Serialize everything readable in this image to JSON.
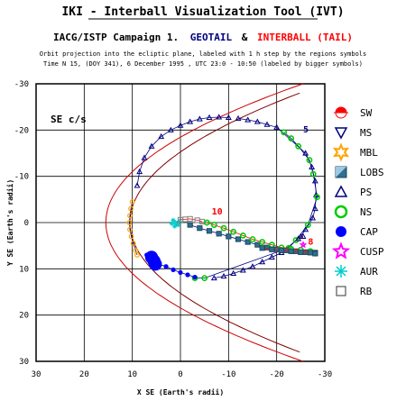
{
  "header": {
    "title": "IKI - Interball Visualization Tool (IVT)",
    "campaign": "IACG/ISTP Campaign 1.",
    "sat1": "GEOTAIL",
    "amp": "&",
    "sat2": "INTERBALL (TAIL)",
    "line1": "Orbit projection into the ecliptic plane, labeled with 1 h step by the regions symbols",
    "line2": "Time N 15, (DOY 341), 6 December 1995 , UTC 23:0 - 10:50 (labeled by bigger symbols)"
  },
  "colors": {
    "geotail": "#000080",
    "interball": "#ff0000",
    "boundary": "#800000",
    "track_ms": "#000080",
    "track_ps": "#000080",
    "mbl": "#ffa500",
    "lobs": "#2f6f8f",
    "ns": "#00cc00",
    "cap": "#0000ff",
    "cusp": "#ff00ff",
    "aur": "#00cccc",
    "rb": "#808080"
  },
  "chart_data": {
    "type": "scatter",
    "coord_label": "SE c/s",
    "xlabel": "X SE (Earth's radii)",
    "ylabel": "Y SE (Earth's radii)",
    "xlim": [
      30,
      -30
    ],
    "ylim": [
      -30,
      30
    ],
    "x_ticks": [
      "30",
      "20",
      "10",
      "0",
      "-10",
      "-20",
      "-30"
    ],
    "y_ticks": [
      "-30",
      "-20",
      "-10",
      "0",
      "10",
      "20",
      "30"
    ],
    "grid": true,
    "time_labels": [
      {
        "text": "5",
        "x": -25.5,
        "y": -19.5,
        "color": "geotail"
      },
      {
        "text": "10",
        "x": -6.5,
        "y": -1.8,
        "color": "interball"
      },
      {
        "text": "8",
        "x": -26.5,
        "y": 4.8,
        "color": "interball"
      }
    ],
    "legend": [
      {
        "label": "SW",
        "symbol": "sw"
      },
      {
        "label": "MS",
        "symbol": "ms"
      },
      {
        "label": "MBL",
        "symbol": "mbl"
      },
      {
        "label": "LOBS",
        "symbol": "lobs"
      },
      {
        "label": "PS",
        "symbol": "ps"
      },
      {
        "label": "NS",
        "symbol": "ns"
      },
      {
        "label": "CAP",
        "symbol": "cap"
      },
      {
        "label": "CUSP",
        "symbol": "cusp"
      },
      {
        "label": "AUR",
        "symbol": "aur"
      },
      {
        "label": "RB",
        "symbol": "rb"
      }
    ],
    "geotail_track": [
      {
        "region": "ms",
        "pts": [
          [
            9.0,
            -8.0
          ],
          [
            8.5,
            -11.0
          ],
          [
            7.5,
            -14.0
          ],
          [
            6.0,
            -16.5
          ],
          [
            4.0,
            -18.6
          ],
          [
            2.0,
            -20.0
          ],
          [
            0.0,
            -21.0
          ],
          [
            -2.0,
            -21.8
          ],
          [
            -4.0,
            -22.4
          ],
          [
            -6.0,
            -22.7
          ],
          [
            -8.0,
            -22.8
          ],
          [
            -10.0,
            -22.7
          ]
        ]
      },
      {
        "region": "ps",
        "pts": [
          [
            -12.0,
            -22.5
          ],
          [
            -14.0,
            -22.2
          ],
          [
            -16.0,
            -21.8
          ],
          [
            -18.0,
            -21.2
          ],
          [
            -20.0,
            -20.6
          ],
          [
            -26.0,
            -15.0
          ],
          [
            -27.3,
            -12.0
          ],
          [
            -28.0,
            -9.0
          ],
          [
            -28.2,
            -6.0
          ],
          [
            -28.0,
            -3.0
          ],
          [
            -27.5,
            -1.0
          ],
          [
            -26.0,
            1.5
          ],
          [
            -25.0,
            3.0
          ],
          [
            -21.0,
            6.5
          ],
          [
            -19.0,
            7.5
          ],
          [
            -17.0,
            8.5
          ],
          [
            -15.0,
            9.5
          ],
          [
            -13.0,
            10.3
          ],
          [
            -11.0,
            11.0
          ],
          [
            -9.0,
            11.6
          ],
          [
            -7.0,
            12.0
          ]
        ]
      },
      {
        "region": "ns",
        "pts": [
          [
            -21.5,
            -19.5
          ],
          [
            -23.0,
            -18.2
          ],
          [
            -24.5,
            -16.5
          ],
          [
            -26.8,
            -13.5
          ],
          [
            -27.6,
            -10.5
          ],
          [
            -28.4,
            -5.5
          ],
          [
            -26.5,
            0.5
          ],
          [
            -24.0,
            3.8
          ],
          [
            -22.5,
            5.5
          ],
          [
            -5.0,
            12.0
          ],
          [
            -3.0,
            12.0
          ]
        ]
      },
      {
        "region": "mbl",
        "pts": [
          [
            10.0,
            -4.5
          ],
          [
            10.3,
            -3.0
          ],
          [
            10.5,
            -1.5
          ],
          [
            10.6,
            0.0
          ],
          [
            10.5,
            1.5
          ],
          [
            10.2,
            3.0
          ],
          [
            9.8,
            4.5
          ],
          [
            9.3,
            6.0
          ],
          [
            9.0,
            7.0
          ]
        ]
      },
      {
        "region": "cap",
        "pts": [
          [
            7.0,
            7.0
          ],
          [
            6.5,
            7.5
          ],
          [
            6.0,
            8.0
          ],
          [
            5.5,
            8.5
          ],
          [
            5.0,
            8.8
          ],
          [
            4.5,
            9.0
          ],
          [
            3.0,
            9.5
          ],
          [
            1.5,
            10.2
          ],
          [
            0.0,
            10.8
          ],
          [
            -1.5,
            11.3
          ],
          [
            -3.0,
            11.8
          ]
        ]
      },
      {
        "region": "lobs",
        "pts": [
          [
            -2.0,
            0.5
          ],
          [
            -4.0,
            1.2
          ],
          [
            -6.0,
            1.8
          ],
          [
            -8.0,
            2.4
          ],
          [
            -10.0,
            3.0
          ],
          [
            -12.0,
            3.6
          ],
          [
            -14.0,
            4.2
          ],
          [
            -16.0,
            4.8
          ],
          [
            -18.0,
            5.4
          ],
          [
            -20.0,
            5.8
          ],
          [
            -22.0,
            6.0
          ],
          [
            -24.0,
            6.2
          ],
          [
            -26.0,
            6.4
          ],
          [
            -28.0,
            6.5
          ]
        ]
      }
    ],
    "interball_track": [
      {
        "region": "aur",
        "pts": [
          [
            1.5,
            -0.5
          ],
          [
            1.0,
            0.0
          ],
          [
            0.5,
            0.5
          ],
          [
            1.2,
            0.8
          ],
          [
            0.2,
            -0.3
          ],
          [
            1.8,
            0.2
          ]
        ]
      },
      {
        "region": "rb",
        "pts": [
          [
            0.0,
            -0.6
          ],
          [
            -1.0,
            -0.7
          ],
          [
            -2.0,
            -0.8
          ],
          [
            -3.5,
            -0.5
          ],
          [
            -4.5,
            -0.2
          ]
        ]
      },
      {
        "region": "ns",
        "pts": [
          [
            -5.5,
            0.0
          ],
          [
            -7.0,
            0.5
          ],
          [
            -9.0,
            1.2
          ],
          [
            -11.0,
            2.0
          ],
          [
            -13.0,
            2.8
          ],
          [
            -15.0,
            3.6
          ],
          [
            -17.0,
            4.2
          ],
          [
            -19.0,
            4.8
          ],
          [
            -21.0,
            5.4
          ],
          [
            -23.0,
            5.7
          ],
          [
            -25.0,
            5.9
          ],
          [
            -27.0,
            6.2
          ]
        ]
      },
      {
        "region": "ps",
        "pts": [
          [
            -24.5,
            3.5
          ],
          [
            -25.5,
            3.0
          ]
        ]
      },
      {
        "region": "lobs",
        "pts": [
          [
            -17.0,
            5.5
          ],
          [
            -19.0,
            5.8
          ],
          [
            -21.0,
            6.0
          ],
          [
            -23.0,
            6.2
          ],
          [
            -25.0,
            6.4
          ],
          [
            -27.0,
            6.5
          ],
          [
            -28.0,
            6.7
          ]
        ]
      },
      {
        "region": "cusp",
        "pts": [
          [
            -25.5,
            4.8
          ]
        ]
      }
    ],
    "big_symbols": [
      {
        "region": "cap",
        "x": 6.0,
        "y": 7.5
      },
      {
        "region": "cap",
        "x": 5.5,
        "y": 8.3
      },
      {
        "region": "cap",
        "x": 5.2,
        "y": 9.0
      }
    ]
  }
}
